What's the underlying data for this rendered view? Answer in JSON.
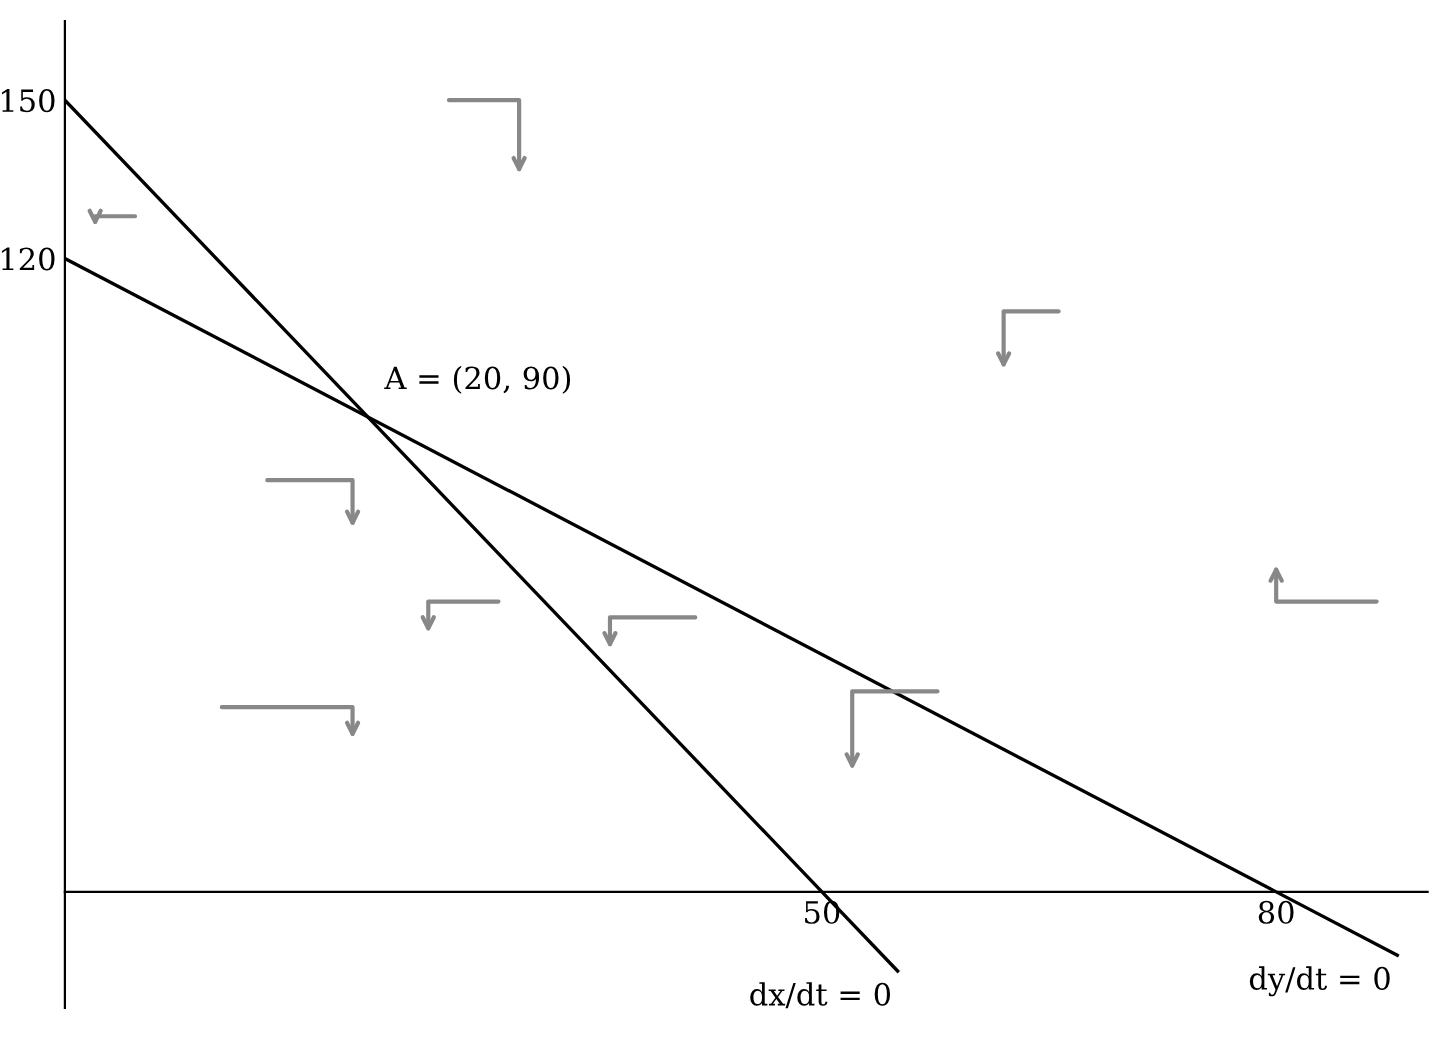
{
  "chart_data": {
    "type": "line",
    "series": [
      {
        "name": "dx/dt = 0",
        "color": "#000000",
        "x": [
          0,
          50,
          55
        ],
        "values": [
          150,
          0,
          -15
        ]
      },
      {
        "name": "dy/dt = 0",
        "color": "#000000",
        "x": [
          0,
          80,
          88
        ],
        "values": [
          120,
          0,
          -12
        ]
      }
    ],
    "annotations": [
      {
        "text": "A = (20, 90)",
        "x": 20,
        "y": 90
      }
    ],
    "xlim": [
      0,
      90
    ],
    "ylim": [
      -22,
      165
    ],
    "xticks": [
      50,
      80
    ],
    "yticks": [
      120,
      150
    ],
    "grid": false,
    "legend": false,
    "marker": "none",
    "line_style": "solid"
  }
}
